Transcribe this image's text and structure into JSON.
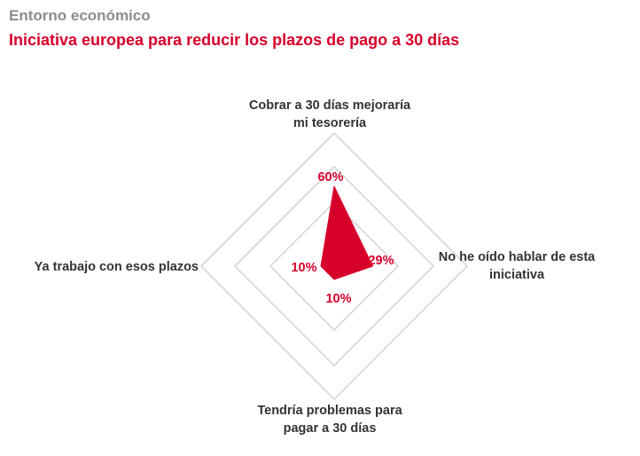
{
  "header": {
    "supertitle": "Entorno económico",
    "title": "Iniciativa europea para reducir los plazos de pago a 30 días"
  },
  "colors": {
    "accent": "#d6002a",
    "supertitle": "#8c8c8c",
    "grid": "#cfcfcf",
    "label": "#333333"
  },
  "chart_data": {
    "type": "radar",
    "title": "Iniciativa europea para reducir los plazos de pago a 30 días",
    "axes": [
      {
        "label": [
          "Cobrar a 30 días mejoraría",
          "mi tesorería"
        ],
        "value": 60,
        "value_label": "60%"
      },
      {
        "label": [
          "No he oído hablar de esta",
          "iniciativa"
        ],
        "value": 29,
        "value_label": "29%"
      },
      {
        "label": [
          "Tendría problemas para",
          "pagar a 30 días"
        ],
        "value": 10,
        "value_label": "10%"
      },
      {
        "label": [
          "Ya trabajo con esos plazos"
        ],
        "value": 10,
        "value_label": "10%"
      }
    ],
    "range": [
      0,
      100
    ],
    "grid_rings": 3,
    "grid": true,
    "legend": "none"
  }
}
